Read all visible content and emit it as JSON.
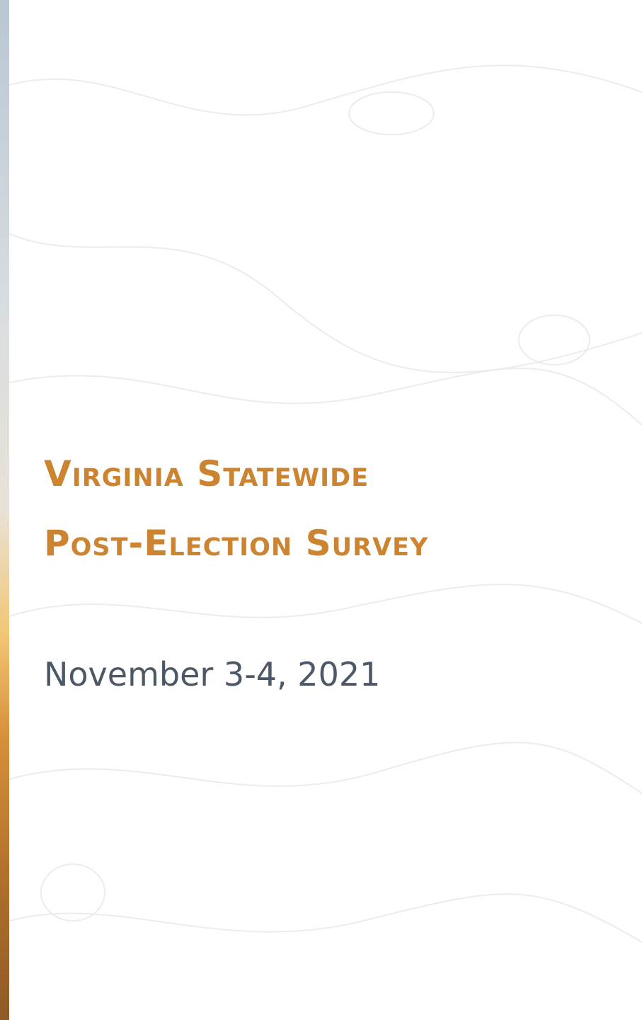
{
  "title": {
    "line1": "Virginia Statewide",
    "line2": "Post-Election Survey"
  },
  "date": "November 3-4, 2021"
}
